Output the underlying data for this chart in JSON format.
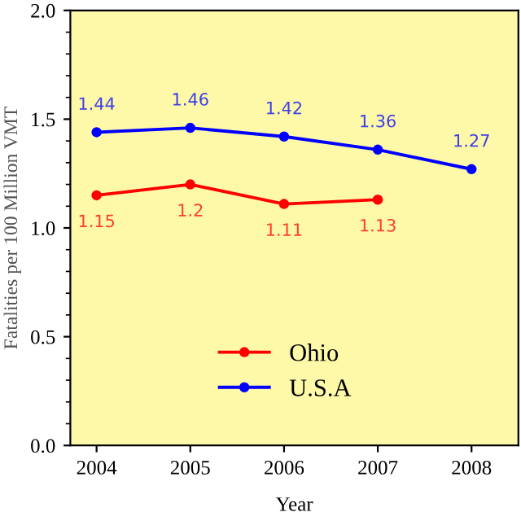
{
  "chart_data": {
    "type": "line",
    "xlabel": "Year",
    "ylabel": "Fatalities per 100 Million VMT",
    "x": [
      2004,
      2005,
      2006,
      2007,
      2008
    ],
    "series": [
      {
        "name": "Ohio",
        "color": "#ff0000",
        "values": [
          1.15,
          1.2,
          1.11,
          1.13,
          null
        ]
      },
      {
        "name": "U.S.A",
        "color": "#0000ff",
        "values": [
          1.44,
          1.46,
          1.42,
          1.36,
          1.27
        ]
      }
    ],
    "xlim": [
      2003.72,
      2008.5
    ],
    "xticks": [
      2004,
      2005,
      2006,
      2007,
      2008
    ],
    "ylim": [
      0,
      2.0
    ],
    "yticks": [
      {
        "value": 0,
        "label": "0.0"
      },
      {
        "value": 0.5,
        "label": "0.5"
      },
      {
        "value": 1.0,
        "label": "1.0"
      },
      {
        "value": 1.5,
        "label": "1.5"
      },
      {
        "value": 2.0,
        "label": "2.0"
      }
    ],
    "data_labels": true,
    "legend": "bottom",
    "marker": "circle",
    "grid": false
  }
}
